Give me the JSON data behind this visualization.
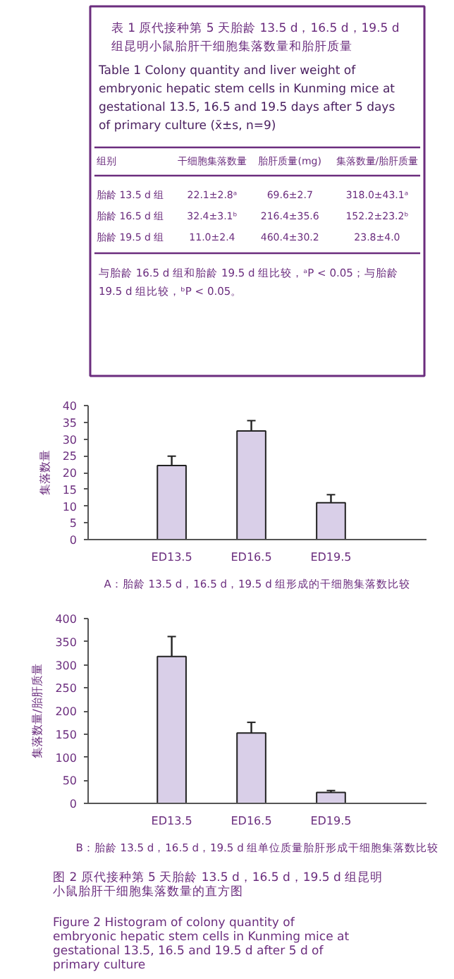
{
  "chart_data": [
    {
      "type": "other",
      "title": "表 1  原代接种第 5 天胎龄 13.5 d，16.5 d，19.5 d 组昆明小鼠胎肝干细胞集落数量和胎肝质量",
      "subtitle": "Table 1  Colony quantity and liver weight of embryonic hepatic stem cells in Kunming mice at gestational 13.5, 16.5 and 19.5 days after 5 days of primary culture (x̄±s, n=9)",
      "annotations": [
        "组别",
        "干细胞集落数量",
        "胎肝质量(mg)",
        "集落数量/胎肝质量",
        "胎龄 13.5 d 组",
        "22.1±2.8ᵃ",
        "69.6±2.7",
        "318.0±43.1ᵃ",
        "胎龄 16.5 d 组",
        "32.4±3.1ᵇ",
        "216.4±35.6",
        "152.2±23.2ᵇ",
        "胎龄 19.5 d 组",
        "11.0±2.4",
        "460.4±30.2",
        "23.8±4.0",
        "与胎龄 16.5 d 组和胎龄 19.5 d 组比较，ᵃP < 0.05；与胎龄 19.5 d 组比较，ᵇP < 0.05。"
      ]
    },
    {
      "type": "bar",
      "categories": [
        "ED13.5",
        "ED16.5",
        "ED19.5"
      ],
      "values": [
        22.1,
        32.4,
        11.0
      ],
      "errors": [
        2.8,
        3.1,
        2.4
      ],
      "color": "#d9cfe8",
      "ylabel": "集落数量",
      "ylim": [
        0,
        40
      ],
      "yticks": [
        0,
        5,
        10,
        15,
        20,
        25,
        30,
        35,
        40
      ],
      "grid": false,
      "legend": false,
      "annotations": [
        "A：胎龄 13.5 d，16.5 d，19.5 d 组形成的干细胞集落数比较"
      ]
    },
    {
      "type": "bar",
      "categories": [
        "ED13.5",
        "ED16.5",
        "ED19.5"
      ],
      "values": [
        318.0,
        152.2,
        23.8
      ],
      "errors": [
        43.1,
        23.2,
        4.0
      ],
      "color": "#d9cfe8",
      "ylabel": "集落数量/胎肝质量",
      "ylim": [
        0,
        400
      ],
      "yticks": [
        0,
        50,
        100,
        150,
        200,
        250,
        300,
        350,
        400
      ],
      "grid": false,
      "legend": false,
      "annotations": [
        "B：胎龄 13.5 d，16.5 d，19.5 d 组单位质量胎肝形成干细胞集落数比较",
        "图 2  原代接种第 5 天胎龄 13.5 d，16.5 d，19.5 d 组昆明小鼠胎肝干细胞集落数量的直方图",
        "Figure 2  Histogram of colony quantity of embryonic hepatic stem cells in Kunming mice at gestational 13.5, 16.5 and 19.5 d after 5 d of primary culture"
      ]
    }
  ]
}
